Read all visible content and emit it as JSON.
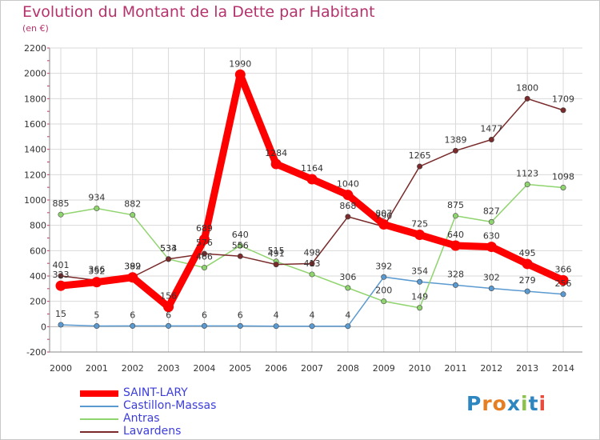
{
  "title": "Evolution du Montant de la Dette par Habitant",
  "subtitle": "(en €)",
  "logo": {
    "text": "Proxiti",
    "colors": [
      "#2e86c1",
      "#e67e22",
      "#e67e22",
      "#2e86c1",
      "#8bc34a",
      "#2e86c1",
      "#e74c3c"
    ]
  },
  "chart_data": {
    "type": "line",
    "categories": [
      "2000",
      "2001",
      "2002",
      "2003",
      "2004",
      "2005",
      "2006",
      "2007",
      "2008",
      "2009",
      "2010",
      "2011",
      "2012",
      "2013",
      "2014"
    ],
    "ylim": [
      -200,
      2200
    ],
    "yticks": [
      "-200",
      "0",
      "200",
      "400",
      "600",
      "800",
      "1000",
      "1200",
      "1400",
      "1600",
      "1800",
      "2000",
      "2200"
    ],
    "grid": true,
    "legend_position": "bottom-left",
    "series": [
      {
        "name": "SAINT-LARY",
        "color": "#ff0000",
        "values": [
          323,
          352,
          389,
          156,
          689,
          1990,
          1284,
          1164,
          1040,
          807,
          725,
          640,
          630,
          495,
          366
        ],
        "labels": [
          "323",
          "352",
          "389",
          "156",
          "689",
          "1990",
          "1284",
          "1164",
          "1040",
          "807",
          "725",
          "640",
          "630",
          "495",
          "366"
        ]
      },
      {
        "name": "Castillon-Massas",
        "color": "#5a9ad0",
        "values": [
          15,
          5,
          6,
          6,
          6,
          6,
          4,
          4,
          4,
          392,
          354,
          328,
          302,
          279,
          256
        ],
        "labels": [
          "15",
          "5",
          "6",
          "6",
          "6",
          "6",
          "4",
          "4",
          "4",
          "392",
          "354",
          "328",
          "302",
          "279",
          "256"
        ]
      },
      {
        "name": "Antras",
        "color": "#8fd46e",
        "values": [
          885,
          934,
          882,
          533,
          466,
          640,
          515,
          413,
          306,
          200,
          149,
          875,
          827,
          1123,
          1098
        ],
        "labels": [
          "885",
          "934",
          "882",
          "533",
          "466",
          "640",
          "515",
          "413",
          "306",
          "200",
          "149",
          "875",
          "827",
          "1123",
          "1098"
        ]
      },
      {
        "name": "Lavardens",
        "color": "#7a2a2a",
        "values": [
          401,
          366,
          392,
          534,
          576,
          556,
          491,
          498,
          868,
          790,
          1265,
          1389,
          1477,
          1800,
          1709
        ],
        "labels": [
          "401",
          "366",
          "392",
          "534",
          "576",
          "556",
          "491",
          "498",
          "868",
          "790",
          "1265",
          "1389",
          "1477",
          "1800",
          "1709"
        ]
      }
    ]
  }
}
